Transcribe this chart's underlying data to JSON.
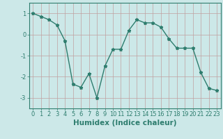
{
  "x": [
    0,
    1,
    2,
    3,
    4,
    5,
    6,
    7,
    8,
    9,
    10,
    11,
    12,
    13,
    14,
    15,
    16,
    17,
    18,
    19,
    20,
    21,
    22,
    23
  ],
  "y": [
    1.0,
    0.85,
    0.7,
    0.45,
    -0.3,
    -2.35,
    -2.5,
    -1.85,
    -3.0,
    -1.5,
    -0.7,
    -0.7,
    0.2,
    0.7,
    0.55,
    0.55,
    0.35,
    -0.2,
    -0.65,
    -0.65,
    -0.65,
    -1.8,
    -2.55,
    -2.65
  ],
  "line_color": "#2e7d6e",
  "marker": "*",
  "markersize": 3.5,
  "bg_color": "#cce8e8",
  "grid_color": "#c0a0a0",
  "axis_color": "#2e7d6e",
  "text_color": "#2e7d6e",
  "xlabel": "Humidex (Indice chaleur)",
  "xlim": [
    -0.5,
    23.5
  ],
  "ylim": [
    -3.5,
    1.5
  ],
  "yticks": [
    -3,
    -2,
    -1,
    0,
    1
  ],
  "xticks": [
    0,
    1,
    2,
    3,
    4,
    5,
    6,
    7,
    8,
    9,
    10,
    11,
    12,
    13,
    14,
    15,
    16,
    17,
    18,
    19,
    20,
    21,
    22,
    23
  ],
  "tick_fontsize": 6,
  "label_fontsize": 7.5,
  "linewidth": 1.0
}
